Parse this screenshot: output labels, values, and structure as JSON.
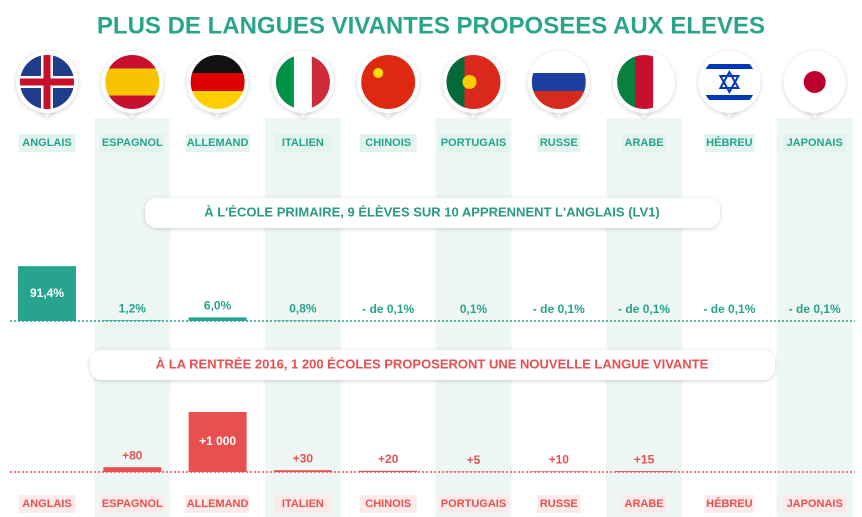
{
  "title": "PLUS DE LANGUES VIVANTES PROPOSEES AUX ELEVES",
  "chart_data": [
    {
      "type": "bar",
      "title": "À L'ÉCOLE PRIMAIRE, 9 ÉLÈVES SUR 10 APPRENNENT L'ANGLAIS (LV1)",
      "categories": [
        "ANGLAIS",
        "ESPAGNOL",
        "ALLEMAND",
        "ITALIEN",
        "CHINOIS",
        "PORTUGAIS",
        "RUSSE",
        "ARABE",
        "HÉBREU",
        "JAPONAIS"
      ],
      "values": [
        91.4,
        1.2,
        6.0,
        0.8,
        null,
        0.1,
        null,
        null,
        null,
        null
      ],
      "value_labels": [
        "91,4%",
        "1,2%",
        "6,0%",
        "0,8%",
        "- de 0,1%",
        "0,1%",
        "- de 0,1%",
        "- de 0,1%",
        "- de 0,1%",
        "- de 0,1%"
      ],
      "color": "#26a48e"
    },
    {
      "type": "bar",
      "title": "À LA RENTRÉE 2016, 1 200 ÉCOLES PROPOSERONT UNE NOUVELLE LANGUE VIVANTE",
      "categories": [
        "ANGLAIS",
        "ESPAGNOL",
        "ALLEMAND",
        "ITALIEN",
        "CHINOIS",
        "PORTUGAIS",
        "RUSSE",
        "ARABE",
        "HÉBREU",
        "JAPONAIS"
      ],
      "values": [
        null,
        80,
        1000,
        30,
        20,
        5,
        10,
        15,
        null,
        null
      ],
      "value_labels": [
        null,
        "+80",
        "+1 000",
        "+30",
        "+20",
        "+5",
        "+10",
        "+15",
        null,
        null
      ],
      "color": "#e8504f"
    }
  ]
}
